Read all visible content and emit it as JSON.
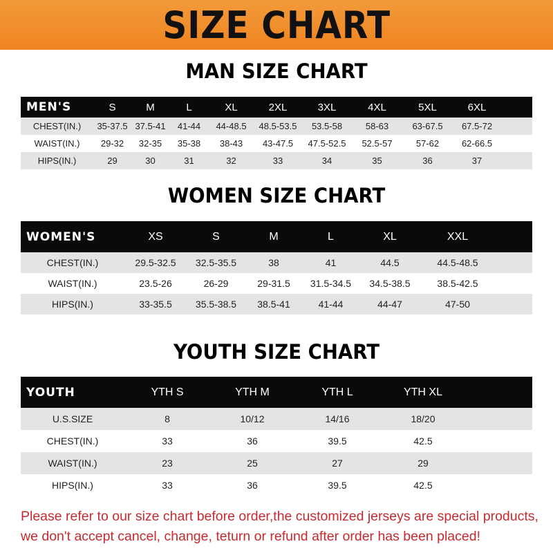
{
  "title": "SIZE CHART",
  "men": {
    "title": "MAN SIZE CHART",
    "header": [
      "MEN'S",
      "S",
      "M",
      "L",
      "XL",
      "2XL",
      "3XL",
      "4XL",
      "5XL",
      "6XL"
    ],
    "rows": [
      [
        "CHEST(IN.)",
        "35-37.5",
        "37.5-41",
        "41-44",
        "44-48.5",
        "48.5-53.5",
        "53.5-58",
        "58-63",
        "63-67.5",
        "67.5-72"
      ],
      [
        "WAIST(IN.)",
        "29-32",
        "32-35",
        "35-38",
        "38-43",
        "43-47.5",
        "47.5-52.5",
        "52.5-57",
        "57-62",
        "62-66.5"
      ],
      [
        "HIPS(IN.)",
        "29",
        "30",
        "31",
        "32",
        "33",
        "34",
        "35",
        "36",
        "37"
      ]
    ]
  },
  "women": {
    "title": "WOMEN SIZE CHART",
    "header": [
      "WOMEN'S",
      "XS",
      "S",
      "M",
      "L",
      "XL",
      "XXL"
    ],
    "rows": [
      [
        "CHEST(IN.)",
        "29.5-32.5",
        "32.5-35.5",
        "38",
        "41",
        "44.5",
        "44.5-48.5"
      ],
      [
        "WAIST(IN.)",
        "23.5-26",
        "26-29",
        "29-31.5",
        "31.5-34.5",
        "34.5-38.5",
        "38.5-42.5"
      ],
      [
        "HIPS(IN.)",
        "33-35.5",
        "35.5-38.5",
        "38.5-41",
        "41-44",
        "44-47",
        "47-50"
      ]
    ]
  },
  "youth": {
    "title": "YOUTH SIZE CHART",
    "header": [
      "YOUTH",
      "YTH S",
      "YTH M",
      "YTH L",
      "YTH XL"
    ],
    "rows": [
      [
        "U.S.SIZE",
        "8",
        "10/12",
        "14/16",
        "18/20"
      ],
      [
        "CHEST(IN.)",
        "33",
        "36",
        "39.5",
        "42.5"
      ],
      [
        "WAIST(IN.)",
        "23",
        "25",
        "27",
        "29"
      ],
      [
        "HIPS(IN.)",
        "33",
        "36",
        "39.5",
        "42.5"
      ]
    ]
  },
  "note": [
    "Please refer to our size chart before order,the customized jerseys are special products,",
    "we don't accept cancel, change, teturn or refund after order has been placed!"
  ],
  "colors": {
    "banner": "#ee8420",
    "header_bg": "#0a0a0a",
    "stripe": "#e4e4e4",
    "note": "#c62a2f"
  }
}
